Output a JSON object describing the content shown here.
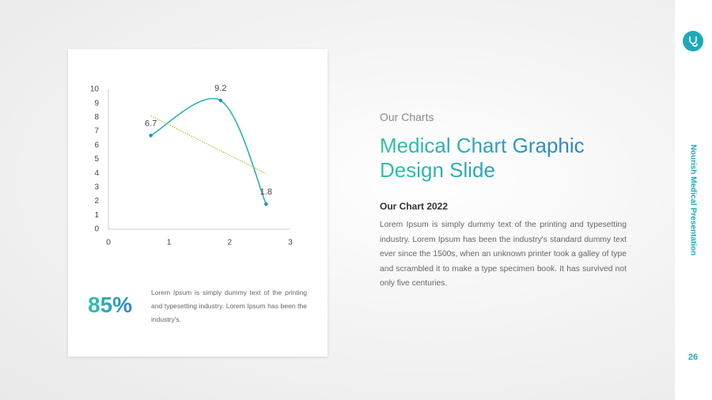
{
  "sidebar": {
    "label": "Nourish Medical Presentation",
    "page": "26"
  },
  "header": {
    "kicker": "Our Charts",
    "title_lines": [
      "Medical Chart Graphic",
      "Design Slide"
    ]
  },
  "section": {
    "heading": "Our Chart 2022",
    "body": "Lorem Ipsum is simply dummy text of the printing and typesetting industry.  Lorem Ipsum has been the industry's standard dummy text ever since the 1500s,  when an unknown printer took a galley of type and scrambled it to make a type specimen book.  It has survived not only five centuries."
  },
  "stat": {
    "value": "85%",
    "text": "Lorem Ipsum is simply dummy text of the printing and typesetting industry.  Lorem Ipsum has been the industry's."
  },
  "chart_data": {
    "type": "line",
    "x": [
      0.7,
      1.85,
      2.6
    ],
    "series": [
      {
        "values": [
          6.7,
          9.2,
          1.8
        ],
        "color": "#2bb5a8"
      }
    ],
    "smooth": true,
    "markers": true,
    "marker_color": "#2a8fc4",
    "data_labels": true,
    "trendline": "linear",
    "trendline_color": "#b8b832",
    "xlim": [
      0,
      3
    ],
    "xticks": [
      0,
      1,
      2,
      3
    ],
    "ylim": [
      0,
      10
    ],
    "yticks": [
      0,
      1,
      2,
      3,
      4,
      5,
      6,
      7,
      8,
      9,
      10
    ],
    "grid": false
  }
}
